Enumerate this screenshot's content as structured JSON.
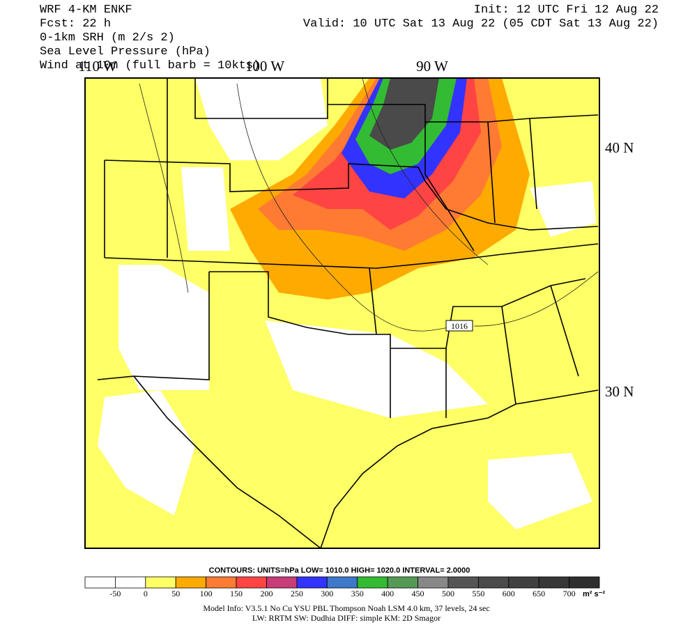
{
  "header": {
    "left": [
      "WRF 4-KM ENKF",
      "Fcst:   22 h",
      "0-1km SRH (m 2/s 2)",
      "Sea Level Pressure (hPa)",
      "Wind at 10m (full barb = 10kts)"
    ],
    "right": [
      "Init: 12 UTC Fri 12 Aug 22",
      "Valid: 10 UTC Sat 13 Aug 22 (05 CDT Sat 13 Aug 22)"
    ]
  },
  "map": {
    "lon_labels": [
      "110 W",
      "100 W",
      "90 W"
    ],
    "lat_labels": [
      "40 N",
      "30 N"
    ],
    "isobar_label": "1016"
  },
  "colorbar": {
    "colors": [
      "#ffffff",
      "#ffffff",
      "#ffff66",
      "#ffaa00",
      "#ff7a33",
      "#ff4444",
      "#c83c78",
      "#3333ff",
      "#3e78c8",
      "#33bb33",
      "#559955",
      "#888888",
      "#555555",
      "#4a4a4a",
      "#404040",
      "#373737",
      "#2e2e2e"
    ],
    "labels": [
      "-50",
      "0",
      "50",
      "100",
      "150",
      "200",
      "250",
      "300",
      "350",
      "400",
      "450",
      "500",
      "550",
      "600",
      "650",
      "700"
    ],
    "units": "m² s⁻²"
  },
  "footer": {
    "contours": "CONTOURS:  UNITS=hPa  LOW=   1010.0      HIGH=   1020.0      INTERVAL=    2.0000",
    "model_info": [
      "Model Info: V3.5.1    No Cu    YSU PBL   Thompson     Noah LSM   4.0 km,   37 levels,    24 sec",
      "LW: RRTM  SW: Dudhia   DIFF: simple  KM: 2D Smagor"
    ]
  }
}
